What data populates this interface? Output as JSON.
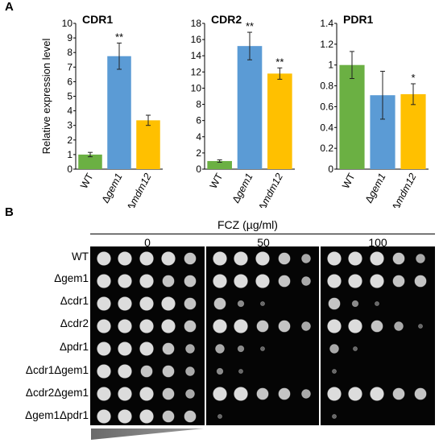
{
  "panel_a": {
    "label": "A"
  },
  "panel_b": {
    "label": "B",
    "drug_label": "FCZ (µg/ml)",
    "concentrations": [
      "0",
      "50",
      "100"
    ],
    "strains": [
      "WT",
      "Δgem1",
      "Δcdr1",
      "Δcdr2",
      "Δpdr1",
      "Δcdr1Δgem1",
      "Δcdr2Δgem1",
      "Δgem1Δpdr1"
    ],
    "growth": [
      [
        [
          5,
          5,
          5,
          5,
          4
        ],
        [
          5,
          5,
          5,
          4,
          3
        ],
        [
          5,
          5,
          5,
          4,
          3
        ]
      ],
      [
        [
          5,
          5,
          5,
          4,
          4
        ],
        [
          5,
          5,
          5,
          4,
          3
        ],
        [
          5,
          5,
          5,
          4,
          4
        ]
      ],
      [
        [
          5,
          5,
          5,
          5,
          4
        ],
        [
          4,
          2,
          1,
          0,
          0
        ],
        [
          4,
          2,
          1,
          0,
          0
        ]
      ],
      [
        [
          5,
          5,
          5,
          5,
          4
        ],
        [
          5,
          5,
          4,
          4,
          3
        ],
        [
          5,
          5,
          4,
          3,
          1
        ]
      ],
      [
        [
          5,
          5,
          5,
          4,
          3
        ],
        [
          3,
          2,
          1,
          0,
          0
        ],
        [
          3,
          1,
          0,
          0,
          0
        ]
      ],
      [
        [
          5,
          5,
          4,
          4,
          3
        ],
        [
          2,
          1,
          0,
          0,
          0
        ],
        [
          1,
          0,
          0,
          0,
          0
        ]
      ],
      [
        [
          5,
          5,
          5,
          4,
          3
        ],
        [
          5,
          5,
          4,
          4,
          3
        ],
        [
          5,
          5,
          5,
          4,
          4
        ]
      ],
      [
        [
          5,
          5,
          5,
          4,
          4
        ],
        [
          1,
          0,
          0,
          0,
          0
        ],
        [
          1,
          0,
          0,
          0,
          0
        ]
      ]
    ]
  },
  "colors": {
    "WT": "#6bb043",
    "gem1": "#5b9bd5",
    "mdm12": "#ffc000"
  },
  "chart_data": [
    {
      "type": "bar",
      "title": "CDR1",
      "ylabel": "Relative expression level",
      "categories": [
        "WT",
        "Δgem1",
        "Δmdm12"
      ],
      "values": [
        1.0,
        7.75,
        3.35
      ],
      "errors": [
        0.15,
        0.9,
        0.35
      ],
      "annotations": [
        "",
        "**",
        ""
      ],
      "ylim": [
        0,
        10
      ],
      "yticks": [
        "0",
        "1",
        "2",
        "3",
        "4",
        "5",
        "6",
        "7",
        "8",
        "9",
        "10"
      ]
    },
    {
      "type": "bar",
      "title": "CDR2",
      "ylabel": "",
      "categories": [
        "WT",
        "Δgem1",
        "Δmdm12"
      ],
      "values": [
        1.0,
        15.2,
        11.8
      ],
      "errors": [
        0.15,
        1.7,
        0.7
      ],
      "annotations": [
        "",
        "**",
        "**"
      ],
      "ylim": [
        0,
        18
      ],
      "yticks": [
        "0",
        "2",
        "4",
        "6",
        "8",
        "10",
        "12",
        "14",
        "16",
        "18"
      ]
    },
    {
      "type": "bar",
      "title": "PDR1",
      "ylabel": "",
      "categories": [
        "WT",
        "Δgem1",
        "Δmdm12"
      ],
      "values": [
        1.0,
        0.71,
        0.72
      ],
      "errors": [
        0.13,
        0.23,
        0.1
      ],
      "annotations": [
        "",
        "",
        "*"
      ],
      "ylim": [
        0,
        1.4
      ],
      "yticks": [
        "0",
        "0.2",
        "0.4",
        "0.6",
        "0.8",
        "1",
        "1.2",
        "1.4"
      ]
    }
  ]
}
